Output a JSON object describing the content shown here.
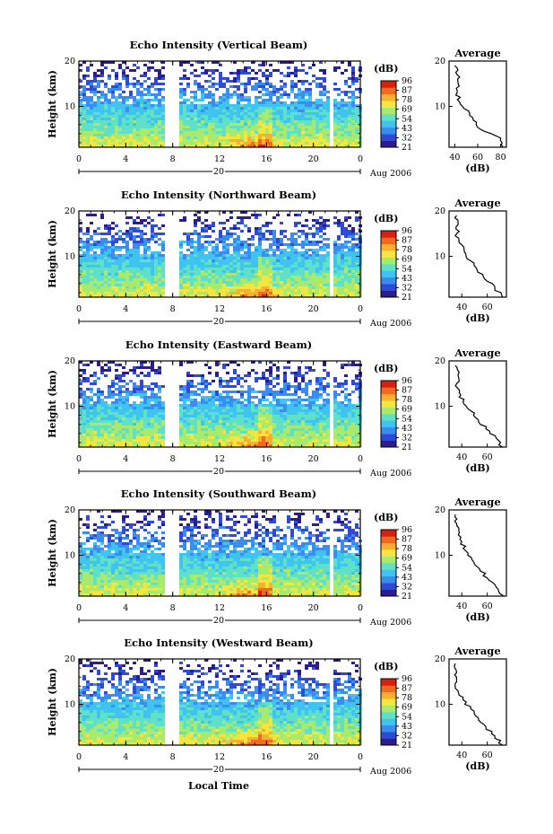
{
  "shared": {
    "ylabel": "Height (km)",
    "x_ticks": [
      "0",
      "4",
      "8",
      "12",
      "16",
      "20",
      "0"
    ],
    "date_day": "20",
    "date_month": "Aug 2006",
    "colorbar_unit": "(dB)",
    "colorbar_ticks": [
      "96",
      "87",
      "78",
      "69",
      "54",
      "43",
      "32",
      "21"
    ],
    "avg_title": "Average",
    "avg_xlabel": "(dB)",
    "x_axis_label": "Local Time",
    "colors": {
      "scale": [
        "#2b1d8c",
        "#2f4bd6",
        "#3a8cf0",
        "#3fc3f0",
        "#5fe0c8",
        "#a8ea6e",
        "#f4e640",
        "#f7b030",
        "#f06a20",
        "#d82010"
      ]
    }
  },
  "chart_data": [
    {
      "type": "heatmap",
      "title": "Echo Intensity (Vertical Beam)",
      "xlim": [
        0,
        24
      ],
      "ylim": [
        1,
        20
      ],
      "gaps_hours": [
        [
          7.3,
          8.5
        ],
        [
          21.2,
          21.5
        ]
      ],
      "peak": {
        "time_range": [
          12,
          17
        ],
        "height_km": 2.5,
        "db": 87
      },
      "avg_profile": {
        "xlim": [
          35,
          85
        ],
        "x_ticks": [
          "40",
          "60",
          "80"
        ],
        "heights": [
          1,
          3,
          5,
          7,
          9,
          11,
          13,
          15,
          17,
          19
        ],
        "db": [
          82,
          80,
          62,
          56,
          52,
          44,
          42,
          43,
          42,
          40
        ]
      }
    },
    {
      "type": "heatmap",
      "title": "Echo Intensity (Northward Beam)",
      "xlim": [
        0,
        24
      ],
      "ylim": [
        1,
        20
      ],
      "gaps_hours": [
        [
          7.3,
          8.5
        ],
        [
          21.2,
          21.5
        ]
      ],
      "peak": {
        "time_range": [
          12,
          17
        ],
        "height_km": 2.5,
        "db": 87
      },
      "avg_profile": {
        "xlim": [
          30,
          75
        ],
        "x_ticks": [
          "40",
          "60"
        ],
        "heights": [
          1,
          3,
          5,
          7,
          9,
          11,
          13,
          15,
          17,
          19
        ],
        "db": [
          72,
          66,
          58,
          52,
          47,
          42,
          38,
          36,
          37,
          36
        ]
      }
    },
    {
      "type": "heatmap",
      "title": "Echo Intensity (Eastward Beam)",
      "xlim": [
        0,
        24
      ],
      "ylim": [
        1,
        20
      ],
      "gaps_hours": [
        [
          7.3,
          8.5
        ],
        [
          21.2,
          21.5
        ]
      ],
      "peak": {
        "time_range": [
          12,
          17
        ],
        "height_km": 2.5,
        "db": 87
      },
      "avg_profile": {
        "xlim": [
          30,
          75
        ],
        "x_ticks": [
          "40",
          "60"
        ],
        "heights": [
          1,
          3,
          5,
          7,
          9,
          11,
          13,
          15,
          17,
          19
        ],
        "db": [
          72,
          67,
          59,
          53,
          47,
          41,
          38,
          36,
          37,
          35
        ]
      }
    },
    {
      "type": "heatmap",
      "title": "Echo Intensity (Southward Beam)",
      "xlim": [
        0,
        24
      ],
      "ylim": [
        1,
        20
      ],
      "gaps_hours": [
        [
          7.3,
          8.5
        ],
        [
          21.2,
          21.5
        ]
      ],
      "peak": {
        "time_range": [
          12,
          17
        ],
        "height_km": 2.5,
        "db": 87
      },
      "avg_profile": {
        "xlim": [
          30,
          75
        ],
        "x_ticks": [
          "40",
          "60"
        ],
        "heights": [
          1,
          3,
          5,
          7,
          9,
          11,
          13,
          15,
          17,
          19
        ],
        "db": [
          73,
          67,
          60,
          54,
          48,
          43,
          40,
          38,
          36,
          35
        ]
      }
    },
    {
      "type": "heatmap",
      "title": "Echo Intensity (Westward Beam)",
      "xlim": [
        0,
        24
      ],
      "ylim": [
        1,
        20
      ],
      "gaps_hours": [
        [
          7.3,
          8.5
        ],
        [
          21.2,
          21.5
        ]
      ],
      "peak": {
        "time_range": [
          12,
          17
        ],
        "height_km": 2.5,
        "db": 87
      },
      "avg_profile": {
        "xlim": [
          30,
          75
        ],
        "x_ticks": [
          "40",
          "60"
        ],
        "heights": [
          1,
          3,
          5,
          7,
          9,
          11,
          13,
          15,
          17,
          19
        ],
        "db": [
          72,
          66,
          59,
          53,
          47,
          41,
          37,
          36,
          36,
          35
        ]
      }
    }
  ]
}
